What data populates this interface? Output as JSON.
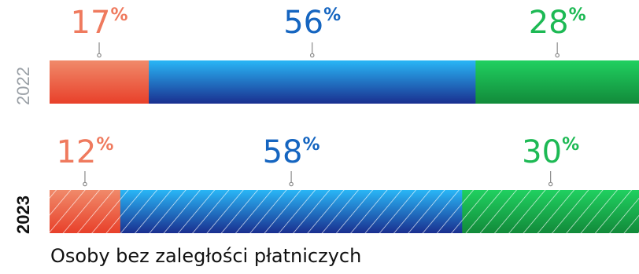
{
  "chart_data": {
    "type": "bar",
    "orientation": "horizontal-stacked",
    "unit": "%",
    "categories": [
      "2022",
      "2023"
    ],
    "series": [
      {
        "values": [
          17,
          12
        ],
        "color": "#ef7a5e"
      },
      {
        "values": [
          56,
          58
        ],
        "color": "#1565c0"
      },
      {
        "values": [
          28,
          30
        ],
        "color": "#1db954"
      }
    ],
    "hatched_category": "2023",
    "caption": "Osoby bez zaległości płatniczych",
    "category_colors": [
      "#9aa0a6",
      "#111111"
    ]
  }
}
